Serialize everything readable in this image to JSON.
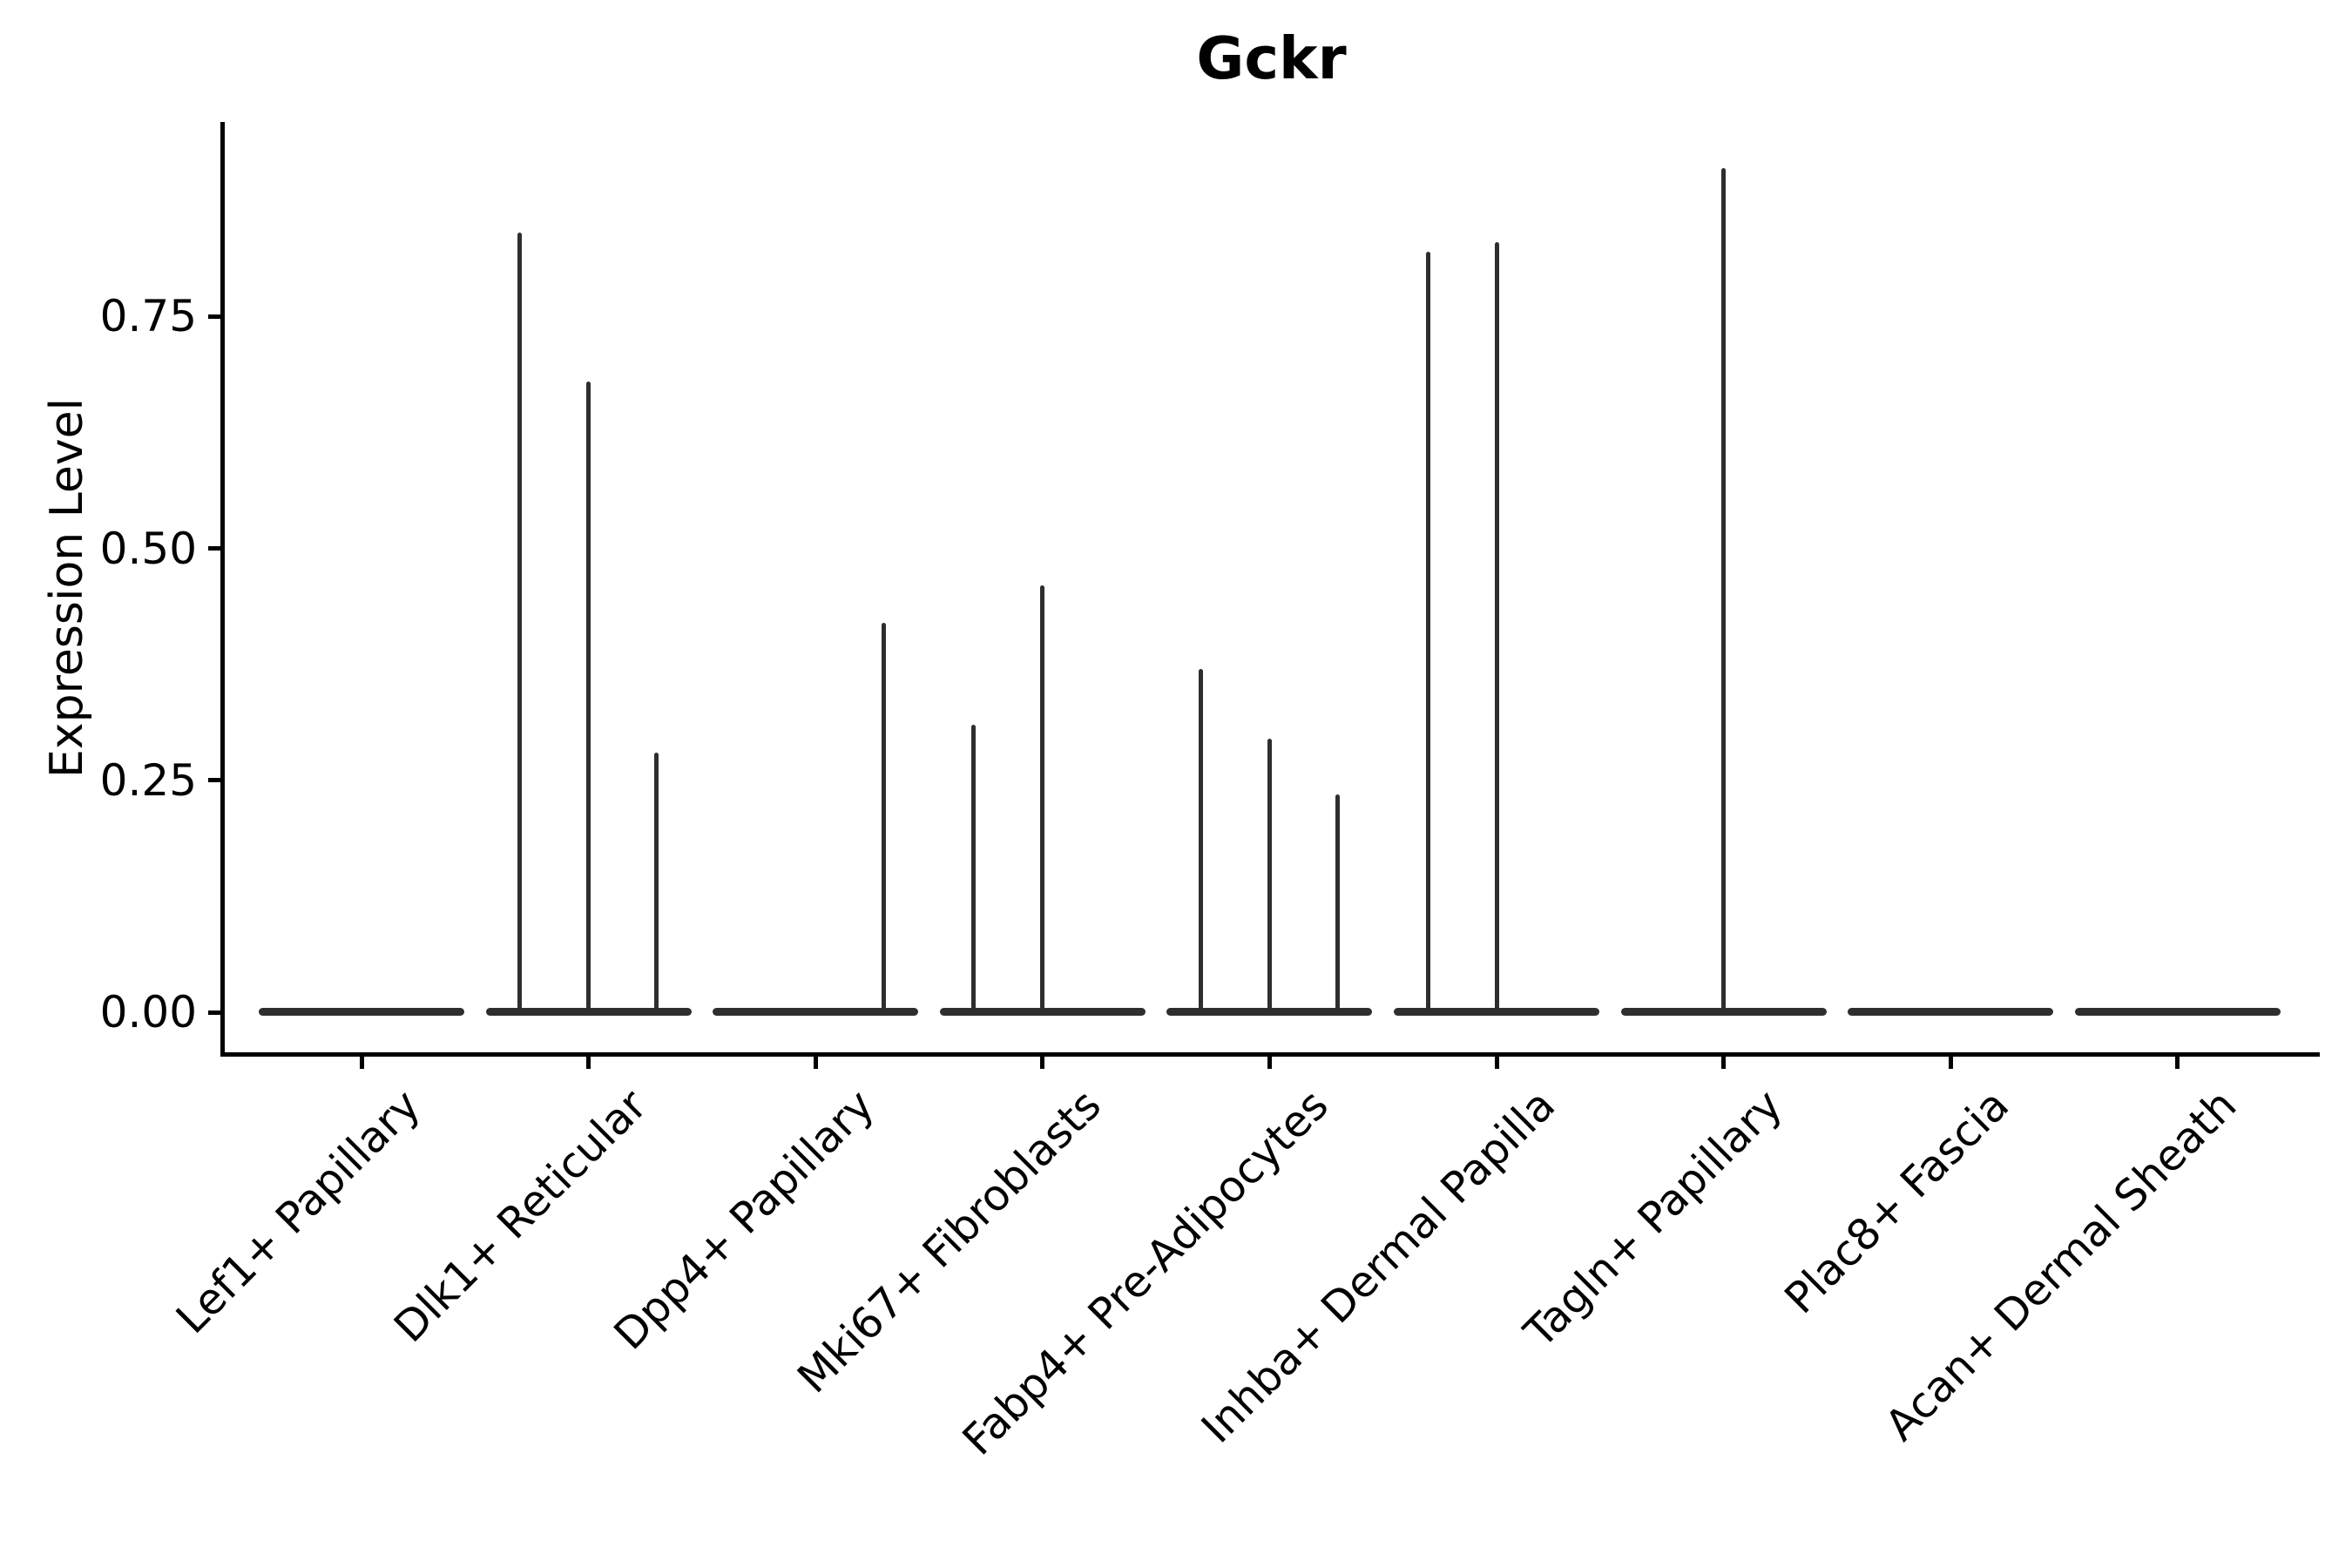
{
  "title": "Gckr",
  "y_axis": {
    "label": "Expression Level",
    "tick_labels": [
      "0.00",
      "0.25",
      "0.50",
      "0.75"
    ]
  },
  "colors": {
    "violin": "#2e2e2e",
    "axis": "#000000",
    "text": "#000000",
    "background": "#ffffff"
  },
  "chart_data": {
    "type": "violin",
    "title": "Gckr",
    "xlabel": "",
    "ylabel": "Expression Level",
    "ylim": [
      0,
      0.96
    ],
    "yticks": [
      0,
      0.25,
      0.5,
      0.75
    ],
    "ytick_labels": [
      "0.00",
      "0.25",
      "0.50",
      "0.75"
    ],
    "grid": false,
    "legend": "none",
    "x_tick_rotation": 45,
    "description": "Zero-inflated violin plot; each category shows a flat baseline at 0 with up to three thin density spikes (left/mid/right sub-violins) reaching the listed maximum expression values. Null means no spike (all-zero expression).",
    "categories": [
      "Lef1+ Papillary",
      "Dlk1+ Reticular",
      "Dpp4+ Papillary",
      "Mki67+ Fibroblasts",
      "Fabp4+ Pre-Adipocytes",
      "Inhba+ Dermal Papilla",
      "Tagln+ Papillary",
      "Plac8+ Fascia",
      "Acan+ Dermal Sheath"
    ],
    "series": [
      {
        "category": "Lef1+ Papillary",
        "spike_max": [
          null,
          null,
          null
        ]
      },
      {
        "category": "Dlk1+ Reticular",
        "spike_max": [
          0.84,
          0.68,
          0.28
        ]
      },
      {
        "category": "Dpp4+ Papillary",
        "spike_max": [
          null,
          null,
          0.42
        ]
      },
      {
        "category": "Mki67+ Fibroblasts",
        "spike_max": [
          0.31,
          0.46,
          null
        ]
      },
      {
        "category": "Fabp4+ Pre-Adipocytes",
        "spike_max": [
          0.37,
          0.295,
          0.235
        ]
      },
      {
        "category": "Inhba+ Dermal Papilla",
        "spike_max": [
          0.82,
          0.83,
          null
        ]
      },
      {
        "category": "Tagln+ Papillary",
        "spike_max": [
          null,
          0.91,
          null
        ]
      },
      {
        "category": "Plac8+ Fascia",
        "spike_max": [
          null,
          null,
          null
        ]
      },
      {
        "category": "Acan+ Dermal Sheath",
        "spike_max": [
          null,
          null,
          null
        ]
      }
    ]
  }
}
